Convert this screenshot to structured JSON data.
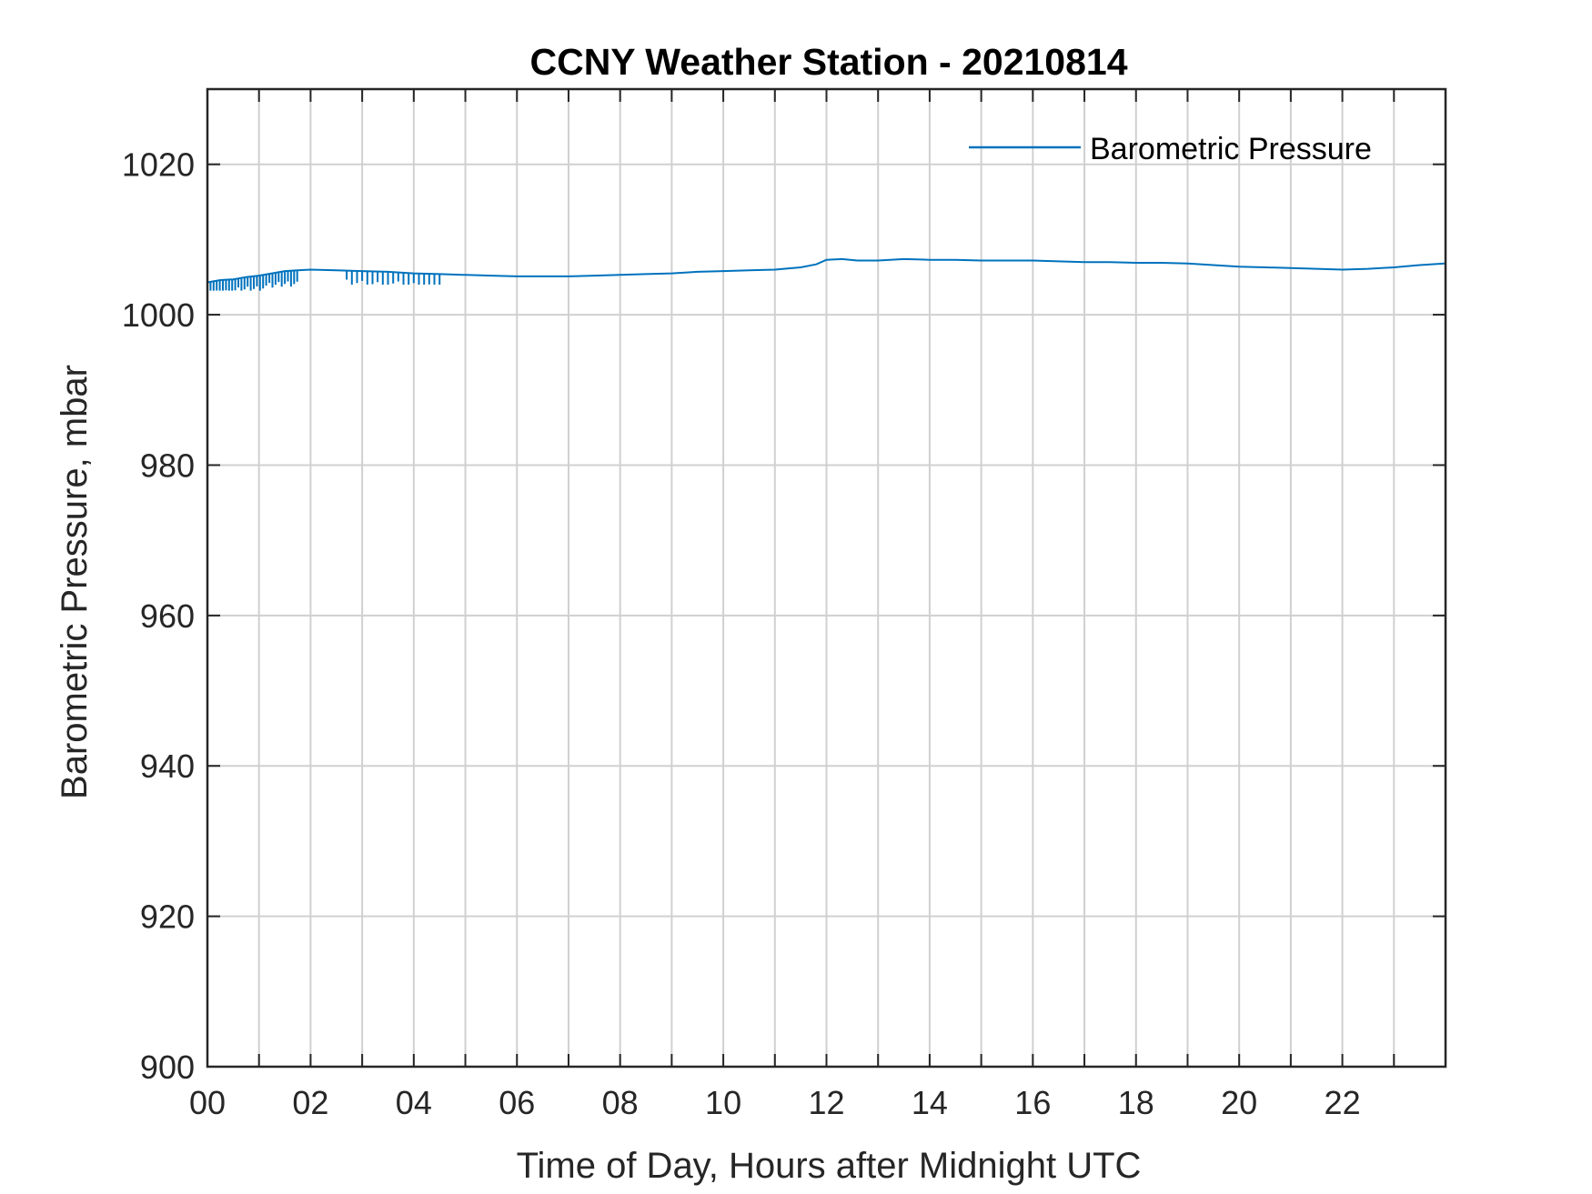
{
  "chart_data": {
    "type": "line",
    "title": "CCNY Weather Station - 20210814",
    "xlabel": "Time of Day, Hours after Midnight UTC",
    "ylabel": "Barometric Pressure, mbar",
    "xlim": [
      0,
      24
    ],
    "ylim": [
      900,
      1030
    ],
    "x_ticks": [
      0,
      2,
      4,
      6,
      8,
      10,
      12,
      14,
      16,
      18,
      20,
      22
    ],
    "x_tick_labels": [
      "00",
      "02",
      "04",
      "06",
      "08",
      "10",
      "12",
      "14",
      "16",
      "18",
      "20",
      "22"
    ],
    "x_grid_step": 1,
    "y_ticks": [
      900,
      920,
      940,
      960,
      980,
      1000,
      1020
    ],
    "y_tick_labels": [
      "900",
      "920",
      "940",
      "960",
      "980",
      "1000",
      "1020"
    ],
    "grid": true,
    "legend": {
      "placement": "top-right",
      "entries": [
        "Barometric Pressure"
      ]
    },
    "series": [
      {
        "name": "Barometric Pressure",
        "color": "#0072BD",
        "x": [
          0,
          0.25,
          0.5,
          0.75,
          1.0,
          1.25,
          1.5,
          1.75,
          2.0,
          2.5,
          3.0,
          3.5,
          4.0,
          4.5,
          5.0,
          5.5,
          6.0,
          6.5,
          7.0,
          7.5,
          8.0,
          8.5,
          9.0,
          9.5,
          10.0,
          10.5,
          11.0,
          11.5,
          11.8,
          12.0,
          12.3,
          12.6,
          13.0,
          13.5,
          14.0,
          14.5,
          15.0,
          15.5,
          16.0,
          16.5,
          17.0,
          17.5,
          18.0,
          18.5,
          19.0,
          19.5,
          20.0,
          20.5,
          21.0,
          21.5,
          22.0,
          22.5,
          23.0,
          23.5,
          23.98
        ],
        "y": [
          1004.3,
          1004.6,
          1004.7,
          1005.0,
          1005.2,
          1005.5,
          1005.8,
          1005.9,
          1006.0,
          1005.9,
          1005.8,
          1005.7,
          1005.5,
          1005.4,
          1005.3,
          1005.2,
          1005.1,
          1005.1,
          1005.1,
          1005.2,
          1005.3,
          1005.4,
          1005.5,
          1005.7,
          1005.8,
          1005.9,
          1006.0,
          1006.3,
          1006.7,
          1007.3,
          1007.4,
          1007.2,
          1007.2,
          1007.4,
          1007.3,
          1007.3,
          1007.2,
          1007.2,
          1007.2,
          1007.1,
          1007.0,
          1007.0,
          1006.9,
          1006.9,
          1006.8,
          1006.6,
          1006.4,
          1006.3,
          1006.2,
          1006.1,
          1006.0,
          1006.1,
          1006.3,
          1006.6,
          1006.8
        ]
      }
    ],
    "noise_segments": [
      {
        "x_start": 0.0,
        "x_end": 1.8,
        "low": 1003.2,
        "high": 1005.8,
        "step": 0.06
      },
      {
        "x_start": 2.7,
        "x_end": 4.5,
        "low": 1004.0,
        "high": 1005.9,
        "step": 0.1
      }
    ]
  }
}
